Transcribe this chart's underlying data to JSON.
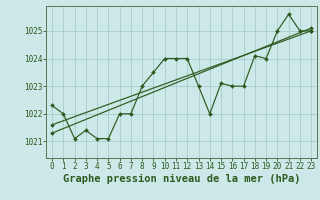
{
  "title": "Graphe pression niveau de la mer (hPa)",
  "background_color": "#cce8e8",
  "grid_color": "#aacccc",
  "line_color": "#2d5a1e",
  "xlim": [
    -0.5,
    23.5
  ],
  "ylim": [
    1020.4,
    1025.9
  ],
  "yticks": [
    1021,
    1022,
    1023,
    1024,
    1025
  ],
  "xticks": [
    0,
    1,
    2,
    3,
    4,
    5,
    6,
    7,
    8,
    9,
    10,
    11,
    12,
    13,
    14,
    15,
    16,
    17,
    18,
    19,
    20,
    21,
    22,
    23
  ],
  "series1_x": [
    0,
    1,
    2,
    3,
    4,
    5,
    6,
    7,
    8,
    9,
    10,
    11,
    12,
    13,
    14,
    15,
    16,
    17,
    18,
    19,
    20,
    21,
    22,
    23
  ],
  "series1_y": [
    1022.3,
    1022.0,
    1021.1,
    1021.4,
    1021.1,
    1021.1,
    1022.0,
    1022.0,
    1023.0,
    1023.5,
    1024.0,
    1024.0,
    1024.0,
    1023.0,
    1022.0,
    1023.1,
    1023.0,
    1023.0,
    1024.1,
    1024.0,
    1025.0,
    1025.6,
    1025.0,
    1025.0
  ],
  "series2_x": [
    0,
    23
  ],
  "series2_y": [
    1021.3,
    1025.1
  ],
  "series3_x": [
    0,
    23
  ],
  "series3_y": [
    1021.6,
    1025.0
  ],
  "title_fontsize": 7.5,
  "tick_fontsize": 5.5
}
